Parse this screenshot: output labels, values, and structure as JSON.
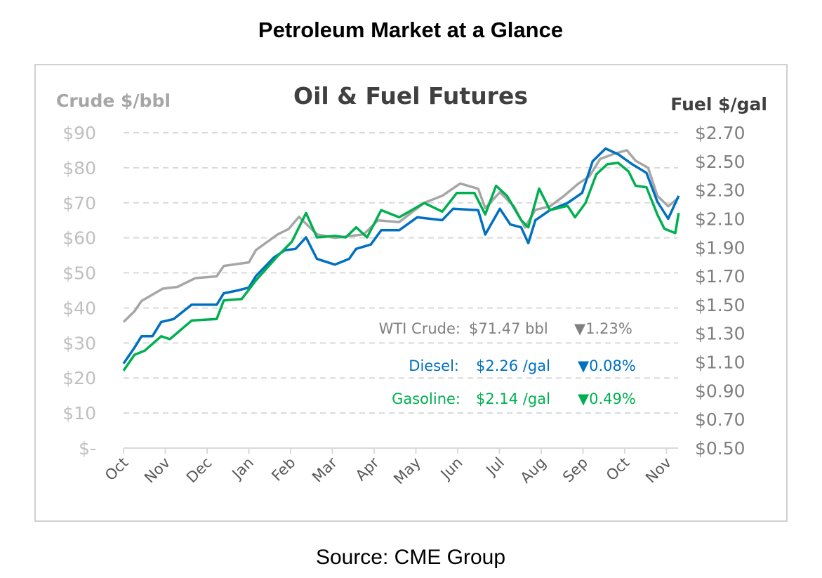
{
  "page_title": "Petroleum Market at a Glance",
  "source": "Source: CME Group",
  "chart_data": {
    "type": "line",
    "title": "Oil & Fuel Futures",
    "ylabel_left": "Crude $/bbl",
    "ylabel_right": "Fuel $/gal",
    "ylim_left": [
      0,
      90
    ],
    "ylim_right": [
      0.5,
      2.7
    ],
    "yticks_left": [
      "$90",
      "$80",
      "$70",
      "$60",
      "$50",
      "$40",
      "$30",
      "$20",
      "$10",
      "$-"
    ],
    "yticks_right": [
      "$2.70",
      "$2.50",
      "$2.30",
      "$2.10",
      "$1.90",
      "$1.70",
      "$1.50",
      "$1.30",
      "$1.10",
      "$0.90",
      "$0.70",
      "$0.50"
    ],
    "x_unit": "months since start of October",
    "xticks": [
      "Oct",
      "Nov",
      "Dec",
      "Jan",
      "Feb",
      "Mar",
      "Apr",
      "May",
      "Jun",
      "Jul",
      "Aug",
      "Sep",
      "Oct",
      "Nov"
    ],
    "grid": true,
    "colors": {
      "crude": "#a6a6a6",
      "diesel": "#0070c0",
      "gasoline": "#00b050"
    },
    "series": [
      {
        "name": "WTI Crude",
        "axis": "left",
        "color": "#a6a6a6",
        "x": [
          0,
          0.26,
          0.43,
          0.94,
          1.29,
          1.72,
          2.23,
          2.4,
          3.0,
          3.17,
          3.69,
          3.95,
          4.2,
          4.63,
          5.06,
          5.75,
          6.09,
          6.6,
          7.2,
          7.63,
          8.06,
          8.49,
          8.66,
          9.01,
          9.35,
          9.61,
          9.86,
          10.21,
          10.55,
          10.89,
          11.15,
          11.41,
          11.75,
          12.05,
          12.26,
          12.56,
          12.78,
          13.04,
          13.29
        ],
        "values": [
          36,
          39,
          42,
          45.5,
          46,
          48.5,
          49,
          52,
          53,
          56.5,
          61,
          62.5,
          66,
          61,
          60,
          61,
          65,
          64.5,
          70,
          72,
          75.5,
          74,
          68.5,
          73,
          69,
          63,
          68,
          69,
          72,
          75.5,
          77.5,
          82.5,
          84,
          85,
          82,
          80,
          72,
          69,
          71.47
        ]
      },
      {
        "name": "Diesel",
        "axis": "right",
        "color": "#0070c0",
        "x": [
          0,
          0.26,
          0.43,
          0.69,
          0.9,
          1.2,
          1.63,
          2.23,
          2.4,
          2.74,
          3.0,
          3.17,
          3.6,
          3.86,
          4.12,
          4.37,
          4.63,
          5.06,
          5.4,
          5.57,
          5.92,
          6.17,
          6.6,
          7.03,
          7.63,
          7.89,
          8.49,
          8.66,
          9.01,
          9.26,
          9.52,
          9.69,
          9.86,
          10.21,
          10.63,
          10.98,
          11.23,
          11.54,
          11.84,
          12.18,
          12.52,
          12.78,
          13.04,
          13.29
        ],
        "values": [
          1.09,
          1.2,
          1.28,
          1.28,
          1.38,
          1.4,
          1.5,
          1.5,
          1.58,
          1.6,
          1.62,
          1.7,
          1.83,
          1.88,
          1.89,
          1.97,
          1.82,
          1.78,
          1.82,
          1.89,
          1.92,
          2.02,
          2.02,
          2.11,
          2.09,
          2.17,
          2.16,
          1.99,
          2.17,
          2.06,
          2.04,
          1.93,
          2.09,
          2.16,
          2.21,
          2.28,
          2.5,
          2.59,
          2.55,
          2.48,
          2.42,
          2.22,
          2.1,
          2.26
        ]
      },
      {
        "name": "Gasoline",
        "axis": "right",
        "color": "#00b050",
        "x": [
          0,
          0.26,
          0.51,
          0.9,
          1.11,
          1.63,
          2.23,
          2.4,
          2.83,
          3.17,
          3.69,
          4.03,
          4.37,
          4.63,
          5.06,
          5.32,
          5.57,
          5.83,
          6.17,
          6.6,
          7.2,
          7.63,
          7.98,
          8.4,
          8.66,
          8.92,
          9.18,
          9.52,
          9.69,
          9.95,
          10.21,
          10.63,
          10.81,
          11.06,
          11.32,
          11.58,
          11.84,
          12.09,
          12.26,
          12.52,
          12.78,
          12.95,
          13.21,
          13.29
        ],
        "values": [
          1.04,
          1.15,
          1.18,
          1.28,
          1.26,
          1.39,
          1.4,
          1.53,
          1.54,
          1.67,
          1.84,
          1.94,
          2.14,
          1.97,
          1.98,
          1.97,
          2.04,
          1.97,
          2.16,
          2.11,
          2.21,
          2.15,
          2.28,
          2.28,
          2.13,
          2.33,
          2.26,
          2.09,
          2.04,
          2.31,
          2.16,
          2.19,
          2.11,
          2.21,
          2.41,
          2.48,
          2.49,
          2.43,
          2.33,
          2.32,
          2.13,
          2.03,
          2.0,
          2.14
        ]
      }
    ],
    "annotations": [
      {
        "label": "WTI Crude:",
        "price": "$71.47 bbl",
        "change": "▼1.23%",
        "color": "#7f7f7f"
      },
      {
        "label": "Diesel:",
        "price": "$2.26 /gal",
        "change": "▼0.08%",
        "color": "#0070c0"
      },
      {
        "label": "Gasoline:",
        "price": "$2.14 /gal",
        "change": "▼0.49%",
        "color": "#00b050"
      }
    ]
  }
}
